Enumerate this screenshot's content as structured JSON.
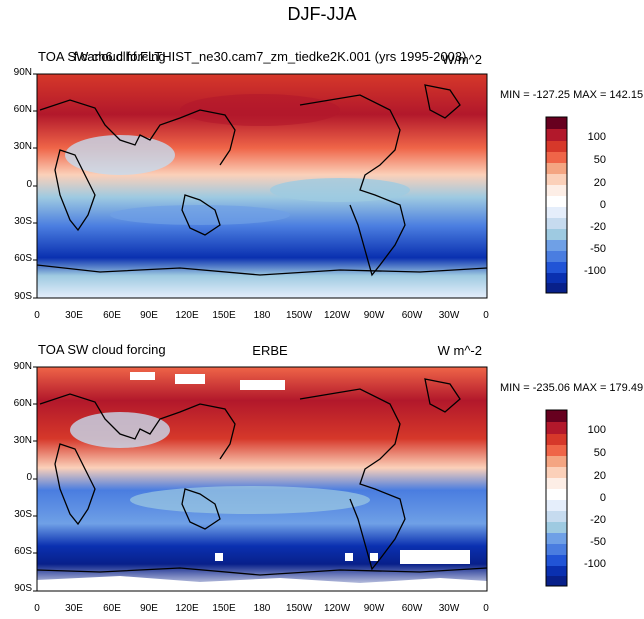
{
  "main_title": "DJF-JJA",
  "panels": [
    {
      "left_text": "TOA SW cloud forcing",
      "center_text": "f.cam6.clhf.FLTHIST_ne30.cam7_zm_tiedke2K.001 (yrs 1995-2003)",
      "right_text": "W/m^2",
      "stats": "MIN = -127.25 MAX = 142.15"
    },
    {
      "left_text": "TOA SW cloud forcing",
      "center_text": "ERBE",
      "right_text": "W m^-2",
      "stats": "MIN = -235.06 MAX = 179.49"
    }
  ],
  "lat_labels": [
    "90N",
    "60N",
    "30N",
    "0",
    "30S",
    "60S",
    "90S"
  ],
  "lon_labels": [
    "0",
    "30E",
    "60E",
    "90E",
    "120E",
    "150E",
    "180",
    "150W",
    "120W",
    "90W",
    "60W",
    "30W",
    "0"
  ],
  "colorbar": {
    "labels": [
      "100",
      "50",
      "20",
      "0",
      "-20",
      "-50",
      "-100"
    ],
    "colors": [
      "#67001f",
      "#b2182b",
      "#d6382a",
      "#ef6548",
      "#f4a582",
      "#fbd0b9",
      "#fdeee6",
      "#e5eefb",
      "#c6dbef",
      "#9ecae1",
      "#6fa0e6",
      "#4a7de0",
      "#2154d6",
      "#0a30b0",
      "#08208a"
    ]
  },
  "chart_data": [
    {
      "type": "heatmap",
      "title": "DJF-JJA",
      "subtitle": "TOA SW cloud forcing, f.cam6.clhf.FLTHIST_ne30.cam7_zm_tiedke2K.001 (yrs 1995-2003)",
      "units": "W/m^2",
      "min": -127.25,
      "max": 142.15,
      "color_levels": [
        -100,
        -50,
        -20,
        0,
        20,
        50,
        100
      ]
    },
    {
      "type": "heatmap",
      "title": "DJF-JJA",
      "subtitle": "TOA SW cloud forcing, ERBE",
      "units": "W m^-2",
      "min": -235.06,
      "max": 179.49,
      "color_levels": [
        -100,
        -50,
        -20,
        0,
        20,
        50,
        100
      ]
    }
  ]
}
